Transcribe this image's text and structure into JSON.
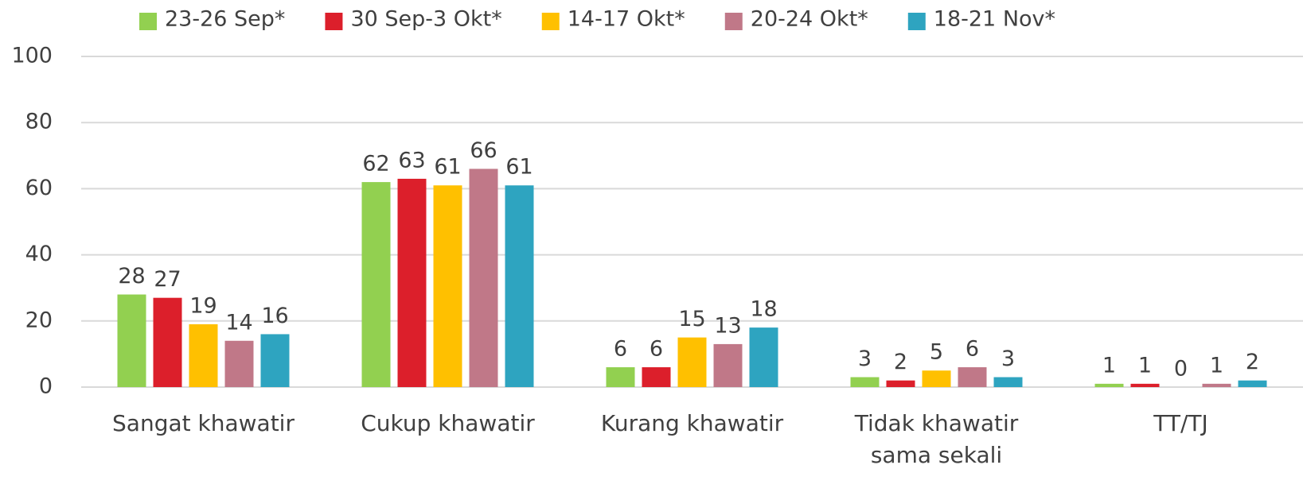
{
  "chart_data": {
    "type": "bar",
    "categories": [
      "Sangat khawatir",
      "Cukup khawatir",
      "Kurang khawatir",
      "Tidak khawatir sama sekali",
      "TT/TJ"
    ],
    "series": [
      {
        "name": "23-26 Sep*",
        "color": "#92d050",
        "values": [
          28,
          62,
          6,
          3,
          1
        ]
      },
      {
        "name": "30 Sep-3 Okt*",
        "color": "#dc1f2b",
        "values": [
          27,
          63,
          6,
          2,
          1
        ]
      },
      {
        "name": "14-17 Okt*",
        "color": "#ffc000",
        "values": [
          19,
          61,
          15,
          5,
          0
        ]
      },
      {
        "name": "20-24 Okt*",
        "color": "#c07888",
        "values": [
          14,
          66,
          13,
          6,
          1
        ]
      },
      {
        "name": "18-21 Nov*",
        "color": "#2ea4c0",
        "values": [
          16,
          61,
          18,
          3,
          2
        ]
      }
    ],
    "ylim": [
      0,
      100
    ],
    "yticks": [
      0,
      20,
      40,
      60,
      80,
      100
    ],
    "grid": true,
    "legend": "top"
  }
}
